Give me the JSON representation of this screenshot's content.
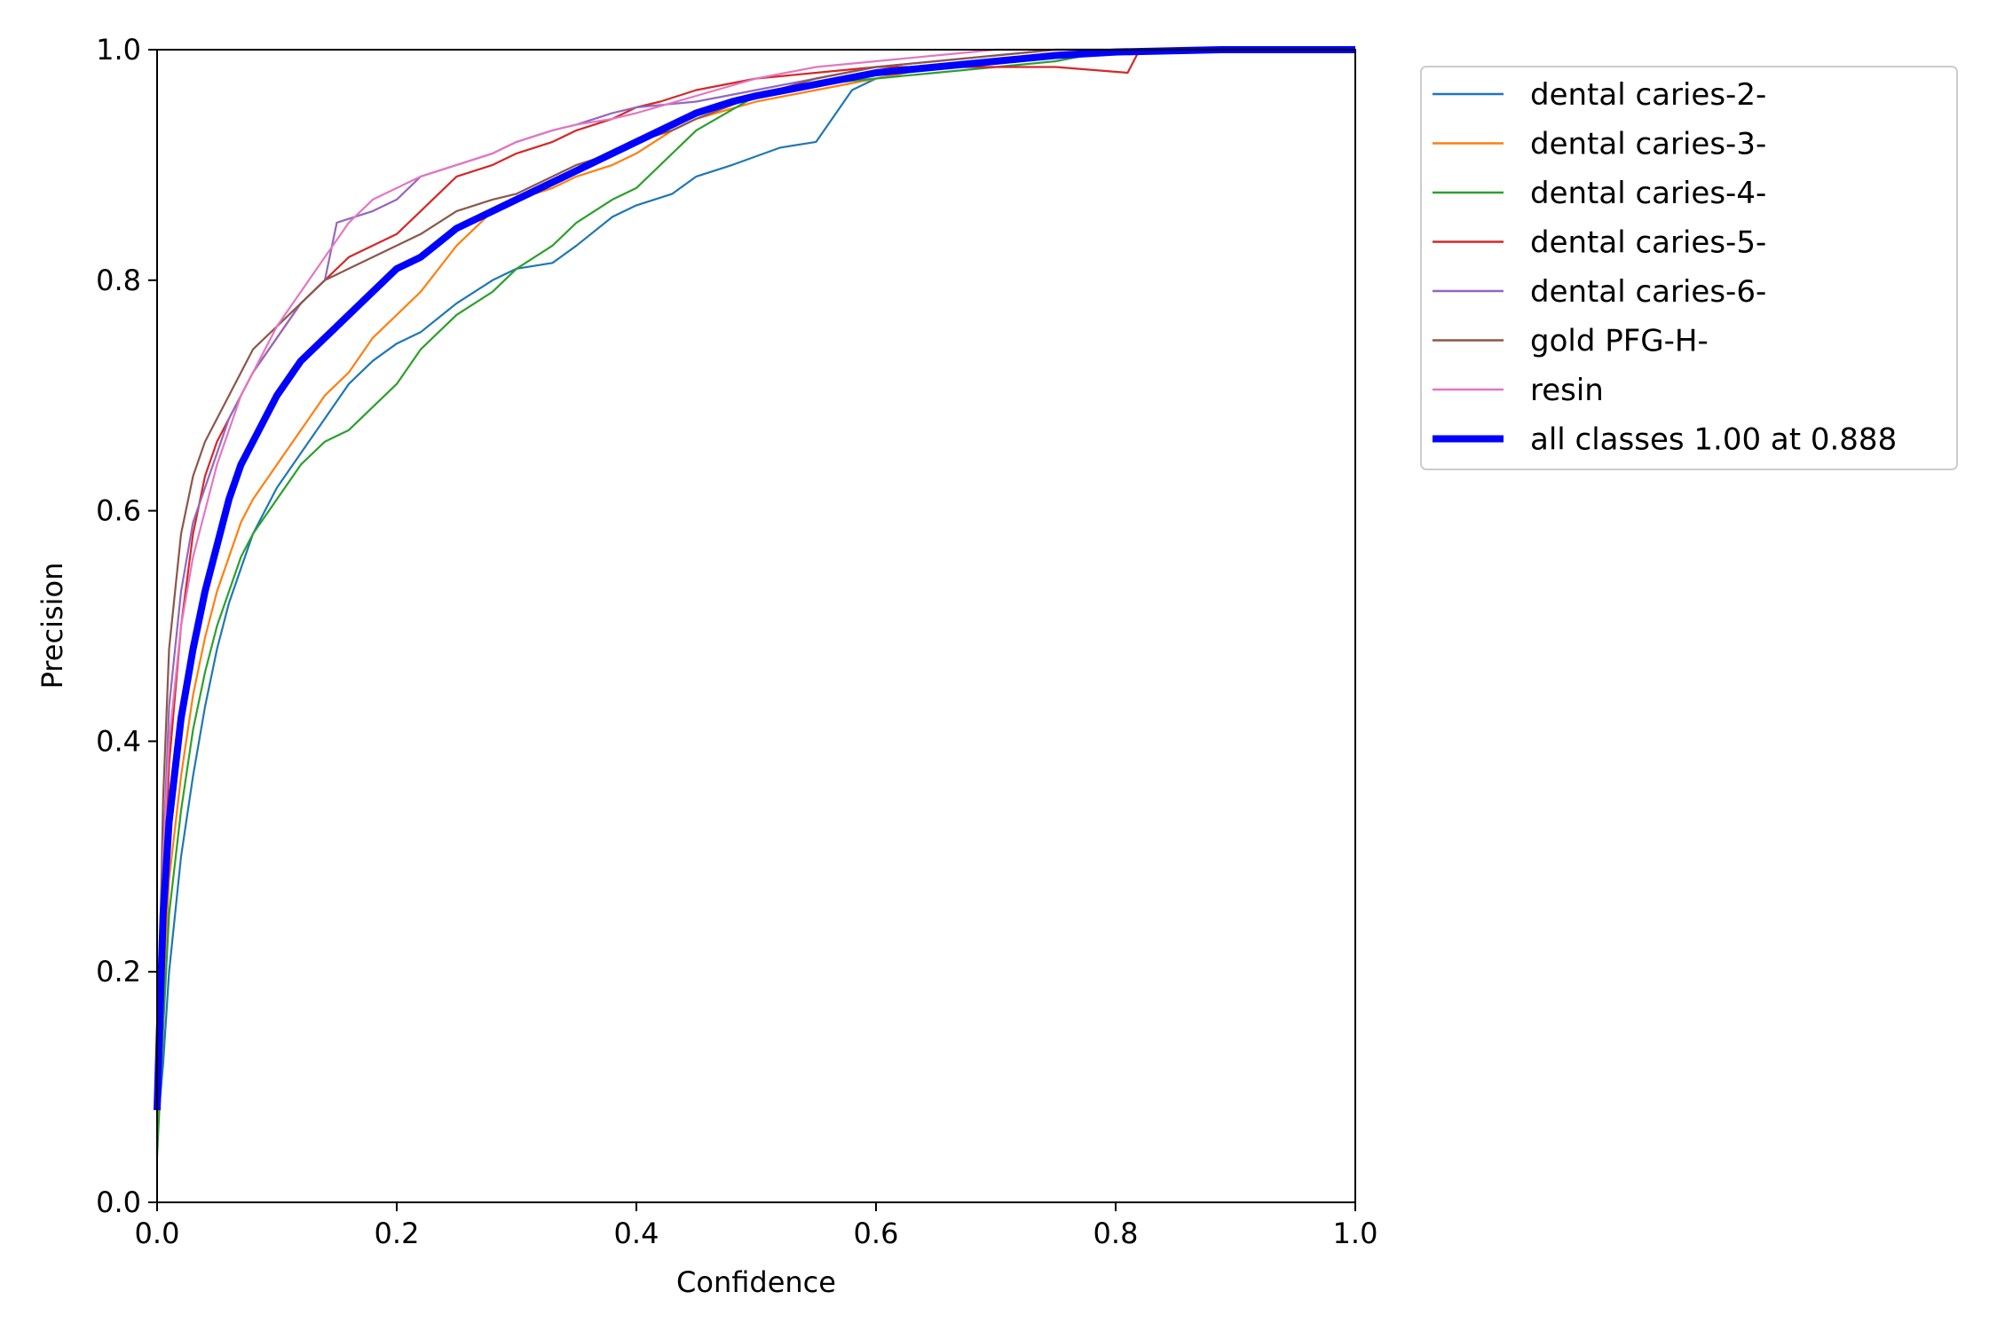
{
  "chart_data": {
    "type": "line",
    "title": "",
    "xlabel": "Confidence",
    "ylabel": "Precision",
    "xlim": [
      0,
      1
    ],
    "ylim": [
      0,
      1
    ],
    "xticks": [
      "0.0",
      "0.2",
      "0.4",
      "0.6",
      "0.8",
      "1.0"
    ],
    "yticks": [
      "0.0",
      "0.2",
      "0.4",
      "0.6",
      "0.8",
      "1.0"
    ],
    "grid": false,
    "legend_position": "outside-right-top",
    "series": [
      {
        "name": "dental caries-2-",
        "color": "#1f77b4",
        "x": [
          0.0,
          0.005,
          0.01,
          0.02,
          0.03,
          0.04,
          0.05,
          0.06,
          0.07,
          0.08,
          0.1,
          0.12,
          0.14,
          0.16,
          0.18,
          0.2,
          0.22,
          0.25,
          0.28,
          0.3,
          0.33,
          0.35,
          0.38,
          0.4,
          0.43,
          0.45,
          0.48,
          0.52,
          0.55,
          0.58,
          0.6,
          0.65,
          0.7,
          0.75,
          0.8,
          0.9,
          1.0
        ],
        "y": [
          0.06,
          0.12,
          0.2,
          0.3,
          0.37,
          0.43,
          0.48,
          0.52,
          0.55,
          0.58,
          0.62,
          0.65,
          0.68,
          0.71,
          0.73,
          0.745,
          0.755,
          0.78,
          0.8,
          0.81,
          0.815,
          0.83,
          0.855,
          0.865,
          0.875,
          0.89,
          0.9,
          0.915,
          0.92,
          0.965,
          0.975,
          0.985,
          0.99,
          0.995,
          1.0,
          1.0,
          1.0
        ]
      },
      {
        "name": "dental caries-3-",
        "color": "#ff7f0e",
        "x": [
          0.0,
          0.005,
          0.01,
          0.02,
          0.03,
          0.04,
          0.05,
          0.06,
          0.07,
          0.08,
          0.1,
          0.12,
          0.14,
          0.16,
          0.18,
          0.2,
          0.22,
          0.25,
          0.28,
          0.3,
          0.33,
          0.35,
          0.38,
          0.4,
          0.43,
          0.45,
          0.5,
          0.55,
          0.6,
          0.65,
          0.7,
          0.75,
          0.8,
          0.9,
          1.0
        ],
        "y": [
          0.06,
          0.18,
          0.28,
          0.37,
          0.44,
          0.49,
          0.53,
          0.56,
          0.59,
          0.61,
          0.64,
          0.67,
          0.7,
          0.72,
          0.75,
          0.77,
          0.79,
          0.83,
          0.86,
          0.87,
          0.88,
          0.89,
          0.9,
          0.91,
          0.93,
          0.94,
          0.955,
          0.965,
          0.975,
          0.985,
          0.99,
          0.995,
          1.0,
          1.0,
          1.0
        ]
      },
      {
        "name": "dental caries-4-",
        "color": "#2ca02c",
        "x": [
          0.0,
          0.005,
          0.01,
          0.02,
          0.03,
          0.04,
          0.05,
          0.06,
          0.07,
          0.08,
          0.1,
          0.12,
          0.14,
          0.16,
          0.18,
          0.2,
          0.22,
          0.25,
          0.28,
          0.3,
          0.33,
          0.35,
          0.38,
          0.4,
          0.42,
          0.45,
          0.5,
          0.55,
          0.6,
          0.65,
          0.7,
          0.75,
          0.8,
          0.9,
          1.0
        ],
        "y": [
          0.04,
          0.15,
          0.25,
          0.34,
          0.41,
          0.46,
          0.5,
          0.53,
          0.56,
          0.58,
          0.61,
          0.64,
          0.66,
          0.67,
          0.69,
          0.71,
          0.74,
          0.77,
          0.79,
          0.81,
          0.83,
          0.85,
          0.87,
          0.88,
          0.9,
          0.93,
          0.96,
          0.97,
          0.975,
          0.98,
          0.985,
          0.99,
          1.0,
          1.0,
          1.0
        ]
      },
      {
        "name": "dental caries-5-",
        "color": "#d62728",
        "x": [
          0.0,
          0.005,
          0.01,
          0.02,
          0.03,
          0.04,
          0.05,
          0.06,
          0.07,
          0.08,
          0.1,
          0.12,
          0.14,
          0.16,
          0.18,
          0.2,
          0.22,
          0.25,
          0.28,
          0.3,
          0.33,
          0.35,
          0.38,
          0.4,
          0.42,
          0.45,
          0.5,
          0.55,
          0.6,
          0.7,
          0.75,
          0.81,
          0.82,
          0.9,
          1.0
        ],
        "y": [
          0.08,
          0.25,
          0.38,
          0.5,
          0.58,
          0.63,
          0.66,
          0.68,
          0.7,
          0.72,
          0.75,
          0.78,
          0.8,
          0.82,
          0.83,
          0.84,
          0.86,
          0.89,
          0.9,
          0.91,
          0.92,
          0.93,
          0.94,
          0.95,
          0.955,
          0.965,
          0.975,
          0.98,
          0.985,
          0.985,
          0.985,
          0.98,
          1.0,
          1.0,
          1.0
        ]
      },
      {
        "name": "dental caries-6-",
        "color": "#9467bd",
        "x": [
          0.0,
          0.005,
          0.01,
          0.02,
          0.03,
          0.04,
          0.05,
          0.06,
          0.07,
          0.08,
          0.1,
          0.12,
          0.14,
          0.15,
          0.18,
          0.2,
          0.22,
          0.25,
          0.28,
          0.3,
          0.33,
          0.35,
          0.38,
          0.4,
          0.45,
          0.5,
          0.55,
          0.6,
          0.65,
          0.7,
          0.75,
          0.8,
          0.9,
          1.0
        ],
        "y": [
          0.1,
          0.3,
          0.43,
          0.53,
          0.59,
          0.62,
          0.65,
          0.68,
          0.7,
          0.72,
          0.75,
          0.78,
          0.8,
          0.85,
          0.86,
          0.87,
          0.89,
          0.9,
          0.91,
          0.92,
          0.93,
          0.935,
          0.945,
          0.95,
          0.955,
          0.965,
          0.975,
          0.985,
          0.99,
          0.995,
          1.0,
          1.0,
          1.0,
          1.0
        ]
      },
      {
        "name": "gold PFG-H-",
        "color": "#8c564b",
        "x": [
          0.0,
          0.005,
          0.01,
          0.02,
          0.03,
          0.04,
          0.05,
          0.06,
          0.07,
          0.08,
          0.1,
          0.12,
          0.14,
          0.16,
          0.18,
          0.2,
          0.22,
          0.25,
          0.28,
          0.3,
          0.33,
          0.35,
          0.38,
          0.4,
          0.43,
          0.45,
          0.5,
          0.55,
          0.6,
          0.65,
          0.7,
          0.75,
          0.8,
          0.9,
          1.0
        ],
        "y": [
          0.1,
          0.35,
          0.48,
          0.58,
          0.63,
          0.66,
          0.68,
          0.7,
          0.72,
          0.74,
          0.76,
          0.78,
          0.8,
          0.81,
          0.82,
          0.83,
          0.84,
          0.86,
          0.87,
          0.875,
          0.89,
          0.9,
          0.91,
          0.92,
          0.93,
          0.94,
          0.96,
          0.975,
          0.985,
          0.99,
          0.995,
          1.0,
          1.0,
          1.0,
          1.0
        ]
      },
      {
        "name": "resin",
        "color": "#e377c2",
        "x": [
          0.0,
          0.005,
          0.01,
          0.02,
          0.03,
          0.04,
          0.05,
          0.06,
          0.07,
          0.08,
          0.1,
          0.12,
          0.14,
          0.16,
          0.18,
          0.2,
          0.22,
          0.25,
          0.28,
          0.3,
          0.33,
          0.35,
          0.38,
          0.4,
          0.45,
          0.5,
          0.55,
          0.6,
          0.65,
          0.7,
          0.75,
          0.8,
          0.9,
          1.0
        ],
        "y": [
          0.1,
          0.3,
          0.4,
          0.5,
          0.56,
          0.6,
          0.64,
          0.67,
          0.7,
          0.72,
          0.76,
          0.79,
          0.82,
          0.85,
          0.87,
          0.88,
          0.89,
          0.9,
          0.91,
          0.92,
          0.93,
          0.935,
          0.94,
          0.945,
          0.96,
          0.975,
          0.985,
          0.99,
          0.995,
          1.0,
          1.0,
          1.0,
          1.0,
          1.0
        ]
      },
      {
        "name": "all classes 1.00 at 0.888",
        "color": "#0000ff",
        "bold": true,
        "x": [
          0.0,
          0.002,
          0.005,
          0.01,
          0.02,
          0.03,
          0.04,
          0.05,
          0.06,
          0.07,
          0.08,
          0.1,
          0.12,
          0.14,
          0.16,
          0.18,
          0.2,
          0.22,
          0.25,
          0.28,
          0.3,
          0.33,
          0.35,
          0.38,
          0.4,
          0.43,
          0.45,
          0.48,
          0.5,
          0.55,
          0.6,
          0.65,
          0.7,
          0.75,
          0.8,
          0.888,
          1.0
        ],
        "y": [
          0.08,
          0.15,
          0.25,
          0.33,
          0.42,
          0.48,
          0.53,
          0.57,
          0.61,
          0.64,
          0.66,
          0.7,
          0.73,
          0.75,
          0.77,
          0.79,
          0.81,
          0.82,
          0.845,
          0.86,
          0.87,
          0.885,
          0.895,
          0.91,
          0.92,
          0.935,
          0.945,
          0.955,
          0.96,
          0.97,
          0.98,
          0.985,
          0.99,
          0.995,
          0.998,
          1.0,
          1.0
        ]
      }
    ]
  }
}
